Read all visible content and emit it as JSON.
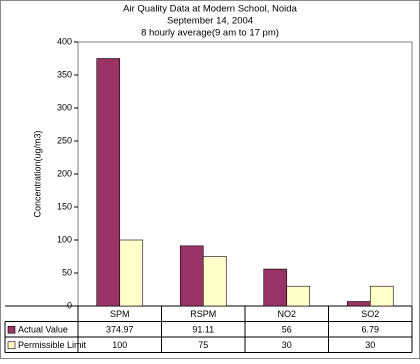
{
  "chart_data": {
    "type": "bar",
    "title": "Air Quality Data at Modern School, Noida",
    "subtitle": "September 14, 2004",
    "subtitle2": "8 hourly average(9 am to 17 pm)",
    "y_label": "Concentration(ug/m3)",
    "categories": [
      "SPM",
      "RSPM",
      "NO2",
      "SO2"
    ],
    "series": [
      {
        "name": "Actual Value",
        "color": "#993366",
        "values": [
          374.97,
          91.11,
          56,
          6.79
        ]
      },
      {
        "name": "Permissible Limit",
        "color": "#ffffcc",
        "values": [
          100,
          75,
          30,
          30
        ]
      }
    ],
    "ylim": [
      0,
      400
    ],
    "yticks": [
      0,
      50,
      100,
      150,
      200,
      250,
      300,
      350,
      400
    ],
    "grid": false
  }
}
